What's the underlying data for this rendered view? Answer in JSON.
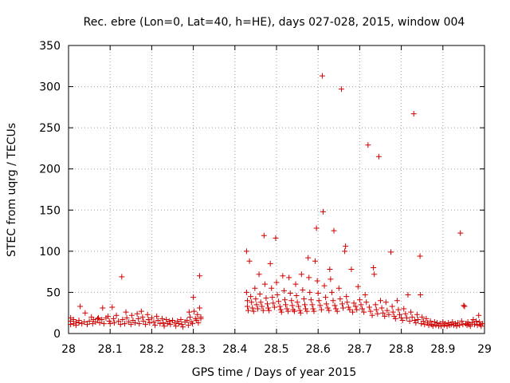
{
  "chart_data": {
    "type": "scatter",
    "title": "Rec. ebre (Lon=0, Lat=40, h=HE), days 027-028, 2015, window 004",
    "xlabel": "GPS time / Days of year 2015",
    "ylabel": "STEC from uqrg / TECUs",
    "xlim": [
      28,
      29
    ],
    "ylim": [
      0,
      350
    ],
    "xticks": [
      "28",
      "28.1",
      "28.2",
      "28.3",
      "28.4",
      "28.5",
      "28.6",
      "28.7",
      "28.8",
      "28.9",
      "29"
    ],
    "yticks": [
      "0",
      "50",
      "100",
      "150",
      "200",
      "250",
      "300",
      "350"
    ],
    "grid": true,
    "marker": "+",
    "color": "#d00000",
    "series": [
      {
        "points": [
          [
            28.005,
            19
          ],
          [
            28.005,
            15
          ],
          [
            28.005,
            11
          ],
          [
            28.012,
            17
          ],
          [
            28.012,
            12
          ],
          [
            28.018,
            14
          ],
          [
            28.018,
            10
          ],
          [
            28.025,
            13
          ],
          [
            28.025,
            16
          ],
          [
            28.028,
            33
          ],
          [
            28.032,
            12
          ],
          [
            28.038,
            14
          ],
          [
            28.04,
            25
          ],
          [
            28.045,
            11
          ],
          [
            28.05,
            15
          ],
          [
            28.055,
            20
          ],
          [
            28.058,
            12
          ],
          [
            28.06,
            17
          ],
          [
            28.065,
            14
          ],
          [
            28.07,
            18
          ],
          [
            28.072,
            19
          ],
          [
            28.075,
            13
          ],
          [
            28.08,
            17
          ],
          [
            28.082,
            31
          ],
          [
            28.085,
            12
          ],
          [
            28.09,
            19
          ],
          [
            28.095,
            21
          ],
          [
            28.098,
            15
          ],
          [
            28.1,
            12
          ],
          [
            28.105,
            32
          ],
          [
            28.108,
            18
          ],
          [
            28.11,
            13
          ],
          [
            28.115,
            22
          ],
          [
            28.12,
            15
          ],
          [
            28.125,
            11
          ],
          [
            28.128,
            69
          ],
          [
            28.13,
            17
          ],
          [
            28.135,
            12
          ],
          [
            28.138,
            26
          ],
          [
            28.14,
            19
          ],
          [
            28.145,
            14
          ],
          [
            28.15,
            11
          ],
          [
            28.152,
            22
          ],
          [
            28.155,
            16
          ],
          [
            28.16,
            13
          ],
          [
            28.165,
            24
          ],
          [
            28.168,
            18
          ],
          [
            28.17,
            12
          ],
          [
            28.175,
            27
          ],
          [
            28.178,
            20
          ],
          [
            28.18,
            15
          ],
          [
            28.185,
            11
          ],
          [
            28.19,
            23
          ],
          [
            28.192,
            17
          ],
          [
            28.195,
            13
          ],
          [
            28.2,
            19
          ],
          [
            28.205,
            14
          ],
          [
            28.208,
            10
          ],
          [
            28.212,
            21
          ],
          [
            28.215,
            16
          ],
          [
            28.22,
            12
          ],
          [
            28.225,
            18
          ],
          [
            28.228,
            13
          ],
          [
            28.23,
            9
          ],
          [
            28.235,
            17
          ],
          [
            28.238,
            12
          ],
          [
            28.242,
            15
          ],
          [
            28.245,
            11
          ],
          [
            28.25,
            16
          ],
          [
            28.255,
            13
          ],
          [
            28.258,
            9
          ],
          [
            28.262,
            15
          ],
          [
            28.265,
            12
          ],
          [
            28.27,
            17
          ],
          [
            28.272,
            11
          ],
          [
            28.275,
            8
          ],
          [
            28.28,
            14
          ],
          [
            28.285,
            16
          ],
          [
            28.288,
            10
          ],
          [
            28.29,
            26
          ],
          [
            28.292,
            20
          ],
          [
            28.295,
            14
          ],
          [
            28.298,
            12
          ],
          [
            28.3,
            44
          ],
          [
            28.302,
            27
          ],
          [
            28.305,
            18
          ],
          [
            28.308,
            16
          ],
          [
            28.31,
            23
          ],
          [
            28.312,
            13
          ],
          [
            28.315,
            70
          ],
          [
            28.315,
            31
          ],
          [
            28.318,
            18
          ],
          [
            28.318,
            20
          ]
        ]
      },
      {
        "points": [
          [
            28.428,
            100
          ],
          [
            28.428,
            50
          ],
          [
            28.43,
            40
          ],
          [
            28.43,
            33
          ],
          [
            28.432,
            28
          ],
          [
            28.435,
            88
          ],
          [
            28.438,
            45
          ],
          [
            28.44,
            38
          ],
          [
            28.442,
            31
          ],
          [
            28.445,
            27
          ],
          [
            28.448,
            55
          ],
          [
            28.45,
            42
          ],
          [
            28.452,
            35
          ],
          [
            28.455,
            30
          ],
          [
            28.458,
            72
          ],
          [
            28.46,
            48
          ],
          [
            28.462,
            38
          ],
          [
            28.465,
            33
          ],
          [
            28.468,
            28
          ],
          [
            28.47,
            119
          ],
          [
            28.472,
            60
          ],
          [
            28.475,
            43
          ],
          [
            28.478,
            36
          ],
          [
            28.48,
            31
          ],
          [
            28.482,
            28
          ],
          [
            28.485,
            85
          ],
          [
            28.488,
            55
          ],
          [
            28.49,
            44
          ],
          [
            28.492,
            37
          ],
          [
            28.495,
            32
          ],
          [
            28.498,
            116
          ],
          [
            28.5,
            62
          ],
          [
            28.502,
            47
          ],
          [
            28.505,
            39
          ],
          [
            28.508,
            33
          ],
          [
            28.51,
            29
          ],
          [
            28.512,
            26
          ],
          [
            28.515,
            70
          ],
          [
            28.518,
            52
          ],
          [
            28.52,
            41
          ],
          [
            28.522,
            35
          ],
          [
            28.525,
            30
          ],
          [
            28.528,
            27
          ],
          [
            28.53,
            68
          ],
          [
            28.533,
            49
          ],
          [
            28.536,
            40
          ],
          [
            28.538,
            34
          ],
          [
            28.54,
            29
          ],
          [
            28.543,
            27
          ],
          [
            28.546,
            60
          ],
          [
            28.548,
            46
          ],
          [
            28.55,
            38
          ],
          [
            28.553,
            33
          ],
          [
            28.556,
            28
          ],
          [
            28.558,
            25
          ],
          [
            28.56,
            72
          ],
          [
            28.563,
            53
          ],
          [
            28.566,
            42
          ],
          [
            28.568,
            35
          ],
          [
            28.57,
            30
          ],
          [
            28.573,
            27
          ],
          [
            28.576,
            92
          ],
          [
            28.578,
            68
          ],
          [
            28.58,
            50
          ],
          [
            28.583,
            41
          ],
          [
            28.586,
            35
          ],
          [
            28.588,
            30
          ],
          [
            28.59,
            27
          ],
          [
            28.593,
            88
          ],
          [
            28.596,
            128
          ],
          [
            28.598,
            64
          ],
          [
            28.6,
            49
          ],
          [
            28.602,
            40
          ],
          [
            28.605,
            34
          ],
          [
            28.608,
            29
          ],
          [
            28.61,
            313
          ],
          [
            28.612,
            148
          ],
          [
            28.615,
            58
          ],
          [
            28.618,
            44
          ],
          [
            28.62,
            36
          ],
          [
            28.623,
            31
          ],
          [
            28.626,
            28
          ],
          [
            28.628,
            78
          ],
          [
            28.63,
            66
          ],
          [
            28.633,
            50
          ],
          [
            28.636,
            40
          ],
          [
            28.638,
            125
          ],
          [
            28.64,
            34
          ],
          [
            28.643,
            30
          ],
          [
            28.646,
            27
          ],
          [
            28.65,
            55
          ],
          [
            28.653,
            42
          ],
          [
            28.656,
            297
          ],
          [
            28.658,
            36
          ],
          [
            28.66,
            31
          ],
          [
            28.664,
            100
          ],
          [
            28.666,
            106
          ],
          [
            28.668,
            45
          ],
          [
            28.67,
            38
          ],
          [
            28.673,
            32
          ],
          [
            28.676,
            29
          ],
          [
            28.68,
            78
          ],
          [
            28.683,
            26
          ],
          [
            28.686,
            37
          ],
          [
            28.69,
            33
          ],
          [
            28.693,
            29
          ],
          [
            28.696,
            57
          ],
          [
            28.7,
            41
          ],
          [
            28.703,
            35
          ],
          [
            28.706,
            30
          ],
          [
            28.71,
            26
          ],
          [
            28.713,
            47
          ],
          [
            28.716,
            38
          ],
          [
            28.72,
            229
          ],
          [
            28.723,
            32
          ],
          [
            28.726,
            27
          ],
          [
            28.73,
            22
          ],
          [
            28.733,
            80
          ],
          [
            28.735,
            72
          ],
          [
            28.738,
            35
          ],
          [
            28.74,
            29
          ],
          [
            28.743,
            24
          ],
          [
            28.746,
            215
          ],
          [
            28.75,
            40
          ],
          [
            28.753,
            31
          ],
          [
            28.756,
            25
          ],
          [
            28.76,
            21
          ],
          [
            28.763,
            38
          ],
          [
            28.766,
            28
          ],
          [
            28.77,
            23
          ],
          [
            28.775,
            99
          ],
          [
            28.778,
            33
          ],
          [
            28.78,
            26
          ],
          [
            28.783,
            21
          ],
          [
            28.786,
            18
          ],
          [
            28.79,
            40
          ],
          [
            28.793,
            29
          ],
          [
            28.796,
            23
          ],
          [
            28.8,
            19
          ],
          [
            28.803,
            16
          ],
          [
            28.806,
            30
          ],
          [
            28.81,
            24
          ],
          [
            28.813,
            19
          ],
          [
            28.816,
            47
          ],
          [
            28.82,
            15
          ],
          [
            28.823,
            26
          ],
          [
            28.826,
            20
          ],
          [
            28.83,
            267
          ],
          [
            28.832,
            16
          ],
          [
            28.835,
            13
          ],
          [
            28.838,
            23
          ],
          [
            28.84,
            17
          ],
          [
            28.845,
            94
          ],
          [
            28.846,
            47
          ],
          [
            28.848,
            12
          ],
          [
            28.85,
            20
          ],
          [
            28.853,
            15
          ],
          [
            28.856,
            11
          ],
          [
            28.86,
            18
          ],
          [
            28.863,
            13
          ],
          [
            28.866,
            10
          ],
          [
            28.87,
            15
          ],
          [
            28.873,
            11
          ],
          [
            28.876,
            9
          ],
          [
            28.88,
            14
          ],
          [
            28.883,
            10
          ],
          [
            28.886,
            13
          ],
          [
            28.89,
            9
          ],
          [
            28.893,
            12
          ],
          [
            28.896,
            9
          ],
          [
            28.9,
            14
          ],
          [
            28.903,
            10
          ],
          [
            28.906,
            12
          ],
          [
            28.91,
            9
          ],
          [
            28.913,
            13
          ],
          [
            28.916,
            10
          ],
          [
            28.92,
            11
          ],
          [
            28.923,
            14
          ],
          [
            28.926,
            10
          ],
          [
            28.93,
            12
          ],
          [
            28.933,
            9
          ],
          [
            28.936,
            13
          ],
          [
            28.94,
            10
          ],
          [
            28.942,
            122
          ],
          [
            28.945,
            15
          ],
          [
            28.948,
            11
          ],
          [
            28.95,
            34
          ],
          [
            28.952,
            33
          ],
          [
            28.955,
            12
          ],
          [
            28.958,
            10
          ],
          [
            28.96,
            14
          ],
          [
            28.963,
            11
          ],
          [
            28.966,
            9
          ],
          [
            28.97,
            13
          ],
          [
            28.973,
            17
          ],
          [
            28.976,
            11
          ],
          [
            28.98,
            15
          ],
          [
            28.983,
            10
          ],
          [
            28.986,
            22
          ],
          [
            28.988,
            14
          ],
          [
            28.99,
            11
          ],
          [
            28.992,
            9
          ],
          [
            28.995,
            12
          ]
        ]
      }
    ]
  }
}
